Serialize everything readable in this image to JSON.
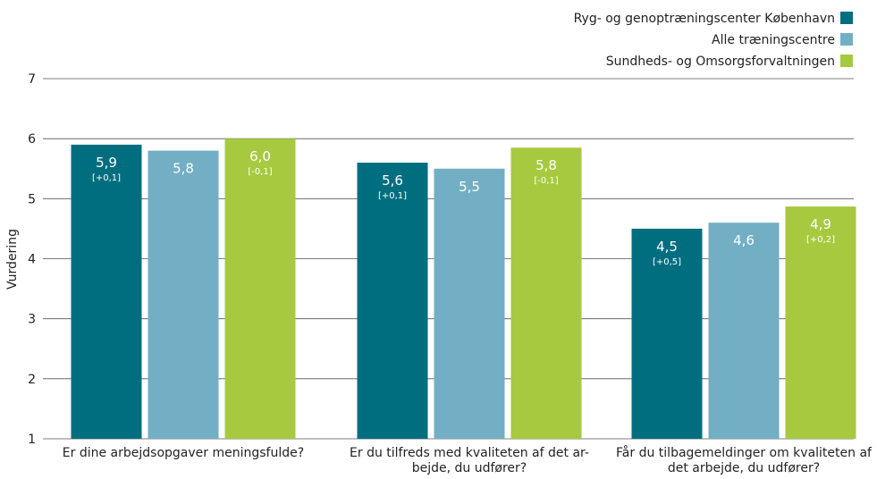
{
  "chart_data": {
    "type": "bar",
    "title": "",
    "xlabel": "",
    "ylabel": "Vurdering",
    "ylim": [
      1,
      7
    ],
    "yticks": [
      1,
      2,
      3,
      4,
      5,
      6,
      7
    ],
    "grid": true,
    "legend_position": "top-right",
    "categories": [
      [
        "Er dine arbejdsopgaver meningsfulde?"
      ],
      [
        "Er du tilfreds med kvaliteten af det ar-",
        "bejde, du udfører?"
      ],
      [
        "Får du tilbagemeldinger om kvaliteten af",
        "det arbejde, du udfører?"
      ]
    ],
    "series": [
      {
        "name": "Ryg- og genoptræningscenter København",
        "color": "#006e7f",
        "values": [
          5.9,
          5.6,
          4.5
        ],
        "labels": [
          "5,9",
          "5,6",
          "4,5"
        ],
        "changes": [
          "[+0,1]",
          "[+0,1]",
          "[+0,5]"
        ]
      },
      {
        "name": "Alle træningscentre",
        "color": "#72afc4",
        "values": [
          5.8,
          5.5,
          4.6
        ],
        "labels": [
          "5,8",
          "5,5",
          "4,6"
        ],
        "changes": [
          "",
          "",
          ""
        ]
      },
      {
        "name": "Sundheds- og Omsorgsforvaltningen",
        "color": "#a7c93f",
        "values": [
          6.0,
          5.85,
          4.87
        ],
        "labels": [
          "6,0",
          "5,8",
          "4,9"
        ],
        "changes": [
          "[-0,1]",
          "[-0,1]",
          "[+0,2]"
        ]
      }
    ]
  }
}
